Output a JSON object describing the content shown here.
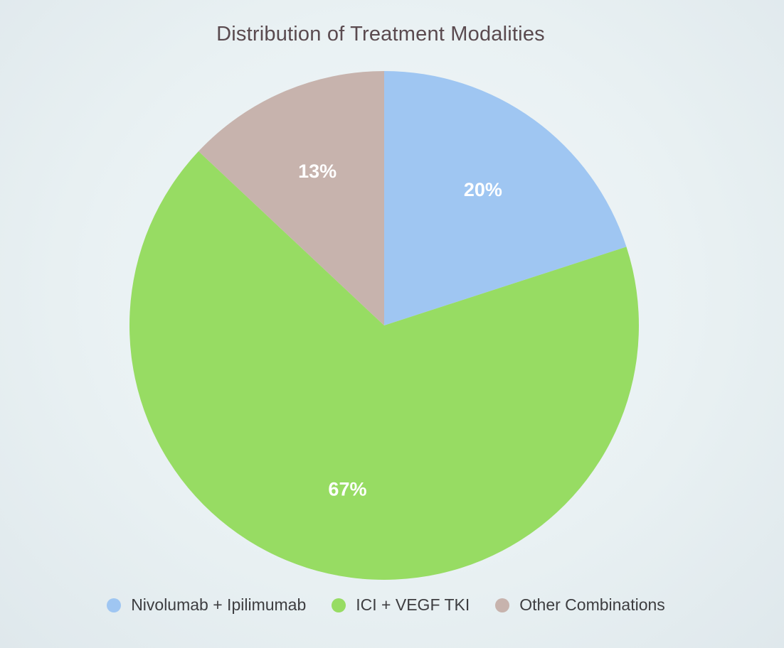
{
  "chart_data": {
    "type": "pie",
    "title": "Distribution of Treatment Modalities",
    "categories": [
      "Nivolumab + Ipilimumab",
      "ICI + VEGF TKI",
      "Other Combinations"
    ],
    "values": [
      20,
      67,
      13
    ],
    "value_labels": [
      "20%",
      "67%",
      "13%"
    ],
    "colors": [
      "#9fc6f2",
      "#97dc63",
      "#c7b3ad"
    ],
    "start_angle_deg": 0,
    "direction": "clockwise",
    "legend_position": "bottom"
  }
}
